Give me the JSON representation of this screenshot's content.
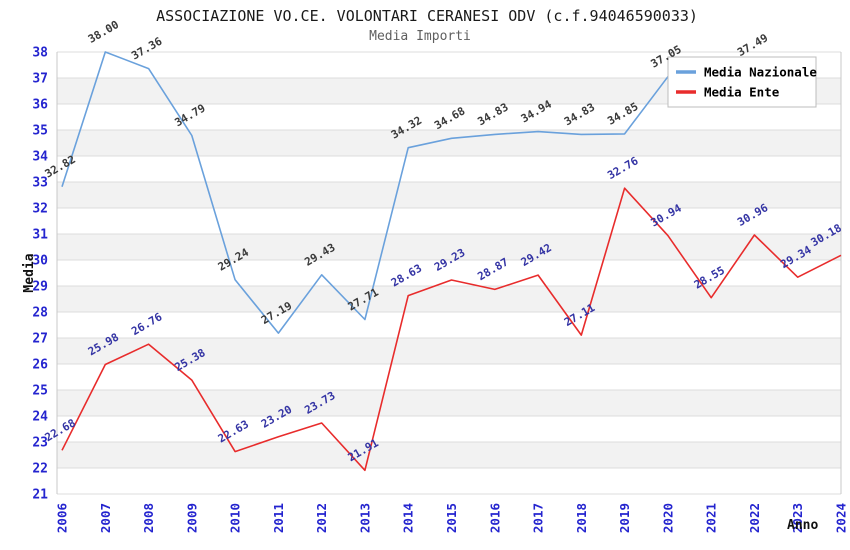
{
  "header": {
    "title": "ASSOCIAZIONE VO.CE. VOLONTARI CERANESI ODV (c.f.94046590033)",
    "subtitle": "Media Importi"
  },
  "legend": {
    "items": [
      {
        "label": "Media Nazionale",
        "color": "#6aa1dc"
      },
      {
        "label": "Media Ente",
        "color": "#e82c2c"
      }
    ]
  },
  "colors": {
    "band": "#f2f2f2",
    "grid": "#dcdcdc",
    "plot_border": "#c8c8c8",
    "axis_tick_label": "#2424cf",
    "title": "#1a1a1a",
    "subtitle": "#5f5f5f",
    "nazionale_line": "#6aa1dc",
    "ente_line": "#e82c2c",
    "nazionale_point_label": "#3a3a3a",
    "ente_point_label": "#3434a4",
    "legend_border": "#bcbcbc",
    "legend_background": "#ffffff"
  },
  "chart_data": {
    "type": "line",
    "title": "ASSOCIAZIONE VO.CE. VOLONTARI CERANESI ODV (c.f.94046590033)",
    "subtitle": "Media Importi",
    "xlabel": "Anno",
    "ylabel": "Media",
    "ylim": [
      21,
      38
    ],
    "ytick_step": 1,
    "grid": "horizontal gridlines with alternating 1-unit gray bands",
    "legend_position": "top-right inside plot",
    "x": [
      2006,
      2007,
      2008,
      2009,
      2010,
      2011,
      2012,
      2013,
      2014,
      2015,
      2016,
      2017,
      2018,
      2019,
      2020,
      2021,
      2022,
      2023,
      2024
    ],
    "series": [
      {
        "name": "Media Nazionale",
        "color": "#6aa1dc",
        "label_color": "#3a3a3a",
        "values": [
          32.82,
          38.0,
          37.36,
          34.79,
          29.24,
          27.19,
          29.43,
          27.71,
          34.32,
          34.68,
          34.83,
          34.94,
          34.83,
          34.85,
          37.05,
          null,
          37.49,
          null,
          null
        ]
      },
      {
        "name": "Media Ente",
        "color": "#e82c2c",
        "label_color": "#3434a4",
        "values": [
          22.68,
          25.98,
          26.76,
          25.38,
          22.63,
          23.2,
          23.73,
          21.91,
          28.63,
          29.23,
          28.87,
          29.42,
          27.11,
          32.76,
          30.94,
          28.55,
          30.96,
          29.34,
          30.18
        ]
      }
    ]
  }
}
